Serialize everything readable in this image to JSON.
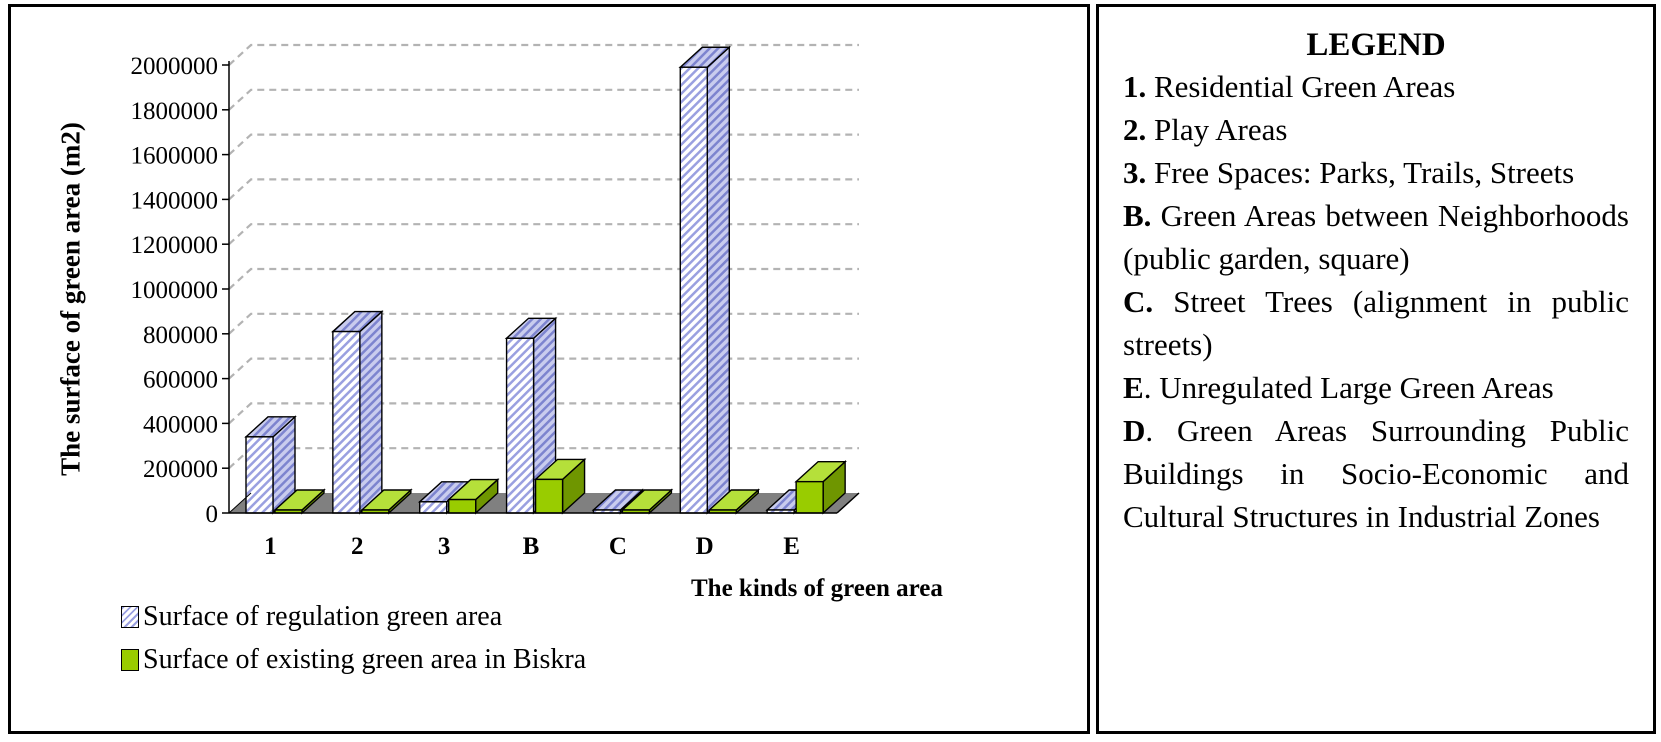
{
  "chart_data": {
    "type": "bar",
    "title": "",
    "xlabel": "The kinds of green area",
    "ylabel": "The surface of green area (m2)",
    "categories": [
      "1",
      "2",
      "3",
      "B",
      "C",
      "D",
      "E"
    ],
    "series": [
      {
        "name": "Surface of regulation green area",
        "values": [
          340000,
          810000,
          50000,
          780000,
          0,
          1990000,
          0
        ]
      },
      {
        "name": "Surface of existing green area in Biskra",
        "values": [
          0,
          0,
          60000,
          150000,
          0,
          0,
          140000
        ]
      }
    ],
    "ylim": [
      0,
      2000000
    ],
    "yticks": [
      "0",
      "200000",
      "400000",
      "600000",
      "800000",
      "1000000",
      "1200000",
      "1400000",
      "1600000",
      "1800000",
      "2000000"
    ],
    "grid": true,
    "legend_position": "bottom-left"
  },
  "colors": {
    "series1": "#9aa0e0",
    "series2": "#99cc00",
    "floor": "#808080",
    "grid": "#b3b3b3"
  },
  "legend": {
    "title": "LEGEND",
    "items": [
      {
        "key": "1.",
        "text": " Residential Green Areas"
      },
      {
        "key": "2.",
        "text": " Play Areas"
      },
      {
        "key": "3.",
        "text": " Free Spaces: Parks, Trails, Streets"
      },
      {
        "key": "B.",
        "text": " Green Areas between Neighborhoods (public garden, square)"
      },
      {
        "key": "C.",
        "text": " Street Trees (alignment in public streets)"
      },
      {
        "key": "E",
        "text": ". Unregulated Large Green Areas"
      },
      {
        "key": "D",
        "text": ". Green Areas Surrounding Public Buildings in Socio-Economic and Cultural Structures in Industrial Zones"
      }
    ]
  }
}
